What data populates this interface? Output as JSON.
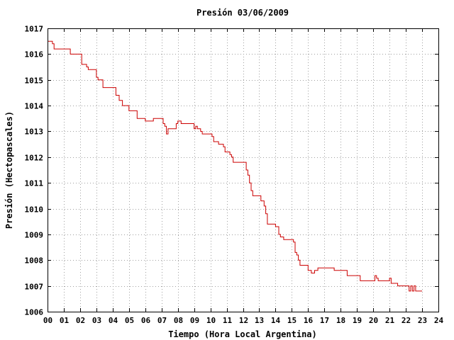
{
  "chart_data": {
    "type": "line",
    "title": "Presión 03/06/2009",
    "xlabel": "Tiempo (Hora Local Argentina)",
    "ylabel": "Presión (Hectopascales)",
    "xlim": [
      0,
      24
    ],
    "ylim": [
      1006,
      1017
    ],
    "x_tick_labels": [
      "00",
      "01",
      "02",
      "03",
      "04",
      "05",
      "06",
      "07",
      "08",
      "09",
      "10",
      "11",
      "12",
      "13",
      "14",
      "15",
      "16",
      "17",
      "18",
      "19",
      "20",
      "21",
      "22",
      "23",
      "24"
    ],
    "y_tick_labels": [
      "1006",
      "1007",
      "1008",
      "1009",
      "1010",
      "1011",
      "1012",
      "1013",
      "1014",
      "1015",
      "1016",
      "1017"
    ],
    "grid": true,
    "series": [
      {
        "color": "#cc0000",
        "x": [
          0,
          0.1,
          0.3,
          0.4,
          0.9,
          1.4,
          1.5,
          2.1,
          2.3,
          2.4,
          2.5,
          3.0,
          3.1,
          3.2,
          3.4,
          4.2,
          4.3,
          4.4,
          4.6,
          5.0,
          5.5,
          6.0,
          6.3,
          6.5,
          6.8,
          7.1,
          7.2,
          7.3,
          7.4,
          7.8,
          7.9,
          8.0,
          8.2,
          8.4,
          8.8,
          9.0,
          9.1,
          9.2,
          9.4,
          9.5,
          10.0,
          10.1,
          10.2,
          10.5,
          10.7,
          10.8,
          10.9,
          11.2,
          11.3,
          11.4,
          11.6,
          12.0,
          12.2,
          12.3,
          12.4,
          12.5,
          12.6,
          13.0,
          13.1,
          13.3,
          13.4,
          13.5,
          13.6,
          13.8,
          14.0,
          14.2,
          14.3,
          14.5,
          14.6,
          15.0,
          15.1,
          15.2,
          15.3,
          15.4,
          15.5,
          15.9,
          16.0,
          16.2,
          16.4,
          16.6,
          17.0,
          17.5,
          17.6,
          18.0,
          18.2,
          18.4,
          18.8,
          19.0,
          19.2,
          19.6,
          20.0,
          20.1,
          20.2,
          20.3,
          20.5,
          20.8,
          21.0,
          21.1,
          21.2,
          21.5,
          21.8,
          22.0,
          22.2,
          22.3,
          22.4,
          22.5,
          22.6,
          23.0
        ],
        "y": [
          1016.5,
          1016.5,
          1016.4,
          1016.2,
          1016.2,
          1016.0,
          1016.0,
          1015.6,
          1015.6,
          1015.5,
          1015.4,
          1015.1,
          1015.0,
          1015.0,
          1014.7,
          1014.4,
          1014.4,
          1014.2,
          1014.0,
          1013.8,
          1013.5,
          1013.4,
          1013.4,
          1013.5,
          1013.5,
          1013.3,
          1013.2,
          1012.9,
          1013.1,
          1013.1,
          1013.3,
          1013.4,
          1013.3,
          1013.3,
          1013.3,
          1013.1,
          1013.2,
          1013.1,
          1013.0,
          1012.9,
          1012.9,
          1012.8,
          1012.6,
          1012.5,
          1012.5,
          1012.4,
          1012.2,
          1012.1,
          1012.0,
          1011.8,
          1011.8,
          1011.8,
          1011.5,
          1011.3,
          1011.0,
          1010.7,
          1010.5,
          1010.5,
          1010.3,
          1010.1,
          1009.8,
          1009.4,
          1009.4,
          1009.4,
          1009.3,
          1009.0,
          1008.9,
          1008.8,
          1008.8,
          1008.8,
          1008.7,
          1008.3,
          1008.2,
          1008.0,
          1007.8,
          1007.8,
          1007.6,
          1007.5,
          1007.6,
          1007.7,
          1007.7,
          1007.7,
          1007.6,
          1007.6,
          1007.6,
          1007.4,
          1007.4,
          1007.4,
          1007.2,
          1007.2,
          1007.2,
          1007.4,
          1007.3,
          1007.2,
          1007.2,
          1007.2,
          1007.3,
          1007.1,
          1007.1,
          1007.0,
          1007.0,
          1007.0,
          1006.8,
          1007.0,
          1006.8,
          1007.0,
          1006.8,
          1006.8
        ]
      }
    ]
  }
}
